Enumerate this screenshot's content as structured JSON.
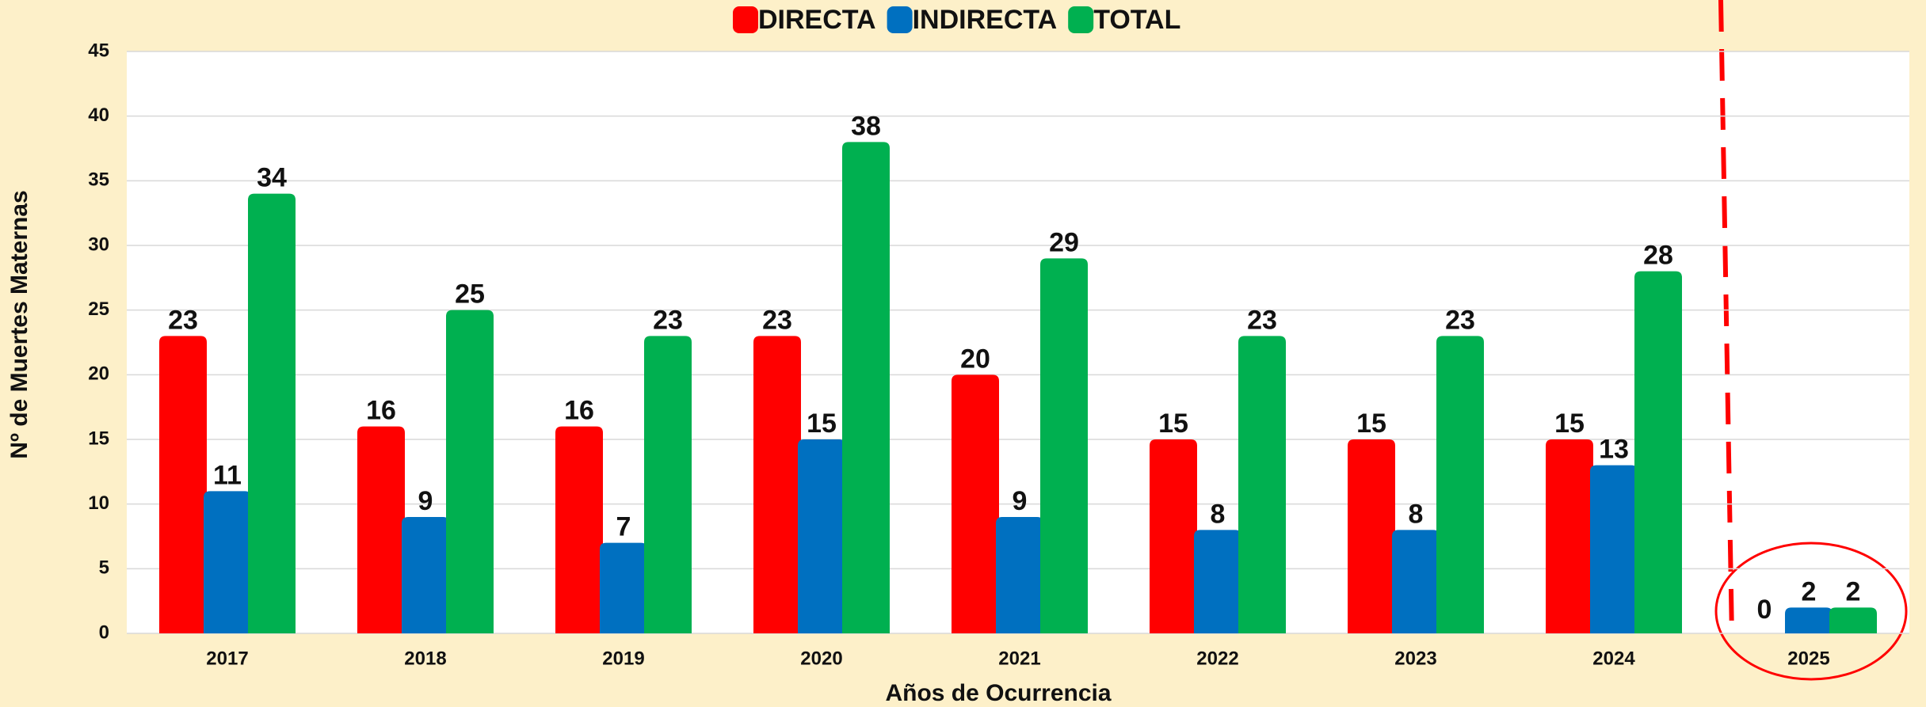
{
  "chart_data": {
    "type": "bar",
    "categories": [
      "2017",
      "2018",
      "2019",
      "2020",
      "2021",
      "2022",
      "2023",
      "2024",
      "2025"
    ],
    "series": [
      {
        "name": "DIRECTA",
        "color": "#ff0000",
        "values": [
          23,
          16,
          16,
          23,
          20,
          15,
          15,
          15,
          0
        ]
      },
      {
        "name": "INDIRECTA",
        "color": "#0070c0",
        "values": [
          11,
          9,
          7,
          15,
          9,
          8,
          8,
          13,
          2
        ]
      },
      {
        "name": "TOTAL",
        "color": "#00b050",
        "values": [
          34,
          25,
          23,
          38,
          29,
          23,
          23,
          28,
          2
        ]
      }
    ],
    "xlabel": "Años de Ocurrencia",
    "ylabel": "Nº de Muertes Maternas",
    "ylim": [
      0,
      45
    ],
    "yticks": [
      0,
      5,
      10,
      15,
      20,
      25,
      30,
      35,
      40,
      45
    ],
    "grid": true,
    "legend": "top"
  }
}
